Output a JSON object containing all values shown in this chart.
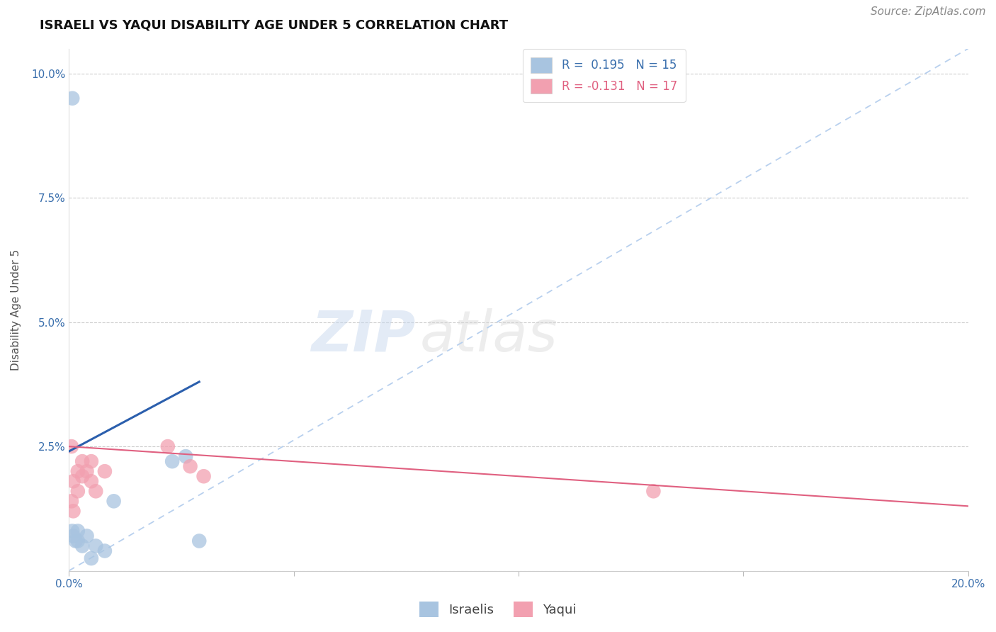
{
  "title": "ISRAELI VS YAQUI DISABILITY AGE UNDER 5 CORRELATION CHART",
  "source": "Source: ZipAtlas.com",
  "ylabel": "Disability Age Under 5",
  "xlim": [
    0.0,
    0.2
  ],
  "ylim": [
    0.0,
    0.105
  ],
  "R_israeli": 0.195,
  "N_israeli": 15,
  "R_yaqui": -0.131,
  "N_yaqui": 17,
  "israeli_color": "#a8c4e0",
  "yaqui_color": "#f2a0b0",
  "israeli_line_color": "#2b5fad",
  "yaqui_line_color": "#e06080",
  "ref_line_color": "#b8d0ee",
  "background_color": "#ffffff",
  "title_fontsize": 13,
  "axis_label_fontsize": 11,
  "tick_fontsize": 11,
  "legend_fontsize": 12,
  "source_fontsize": 11,
  "israelis_x": [
    0.0008,
    0.001,
    0.0015,
    0.002,
    0.002,
    0.003,
    0.004,
    0.005,
    0.006,
    0.008,
    0.01,
    0.023,
    0.026,
    0.029,
    0.0008
  ],
  "israelis_y": [
    0.008,
    0.007,
    0.006,
    0.008,
    0.006,
    0.005,
    0.007,
    0.0025,
    0.005,
    0.004,
    0.014,
    0.022,
    0.023,
    0.006,
    0.095
  ],
  "yaqui_x": [
    0.0006,
    0.001,
    0.001,
    0.002,
    0.002,
    0.003,
    0.003,
    0.004,
    0.005,
    0.005,
    0.006,
    0.008,
    0.022,
    0.027,
    0.03,
    0.13,
    0.0006
  ],
  "yaqui_y": [
    0.014,
    0.012,
    0.018,
    0.02,
    0.016,
    0.022,
    0.019,
    0.02,
    0.018,
    0.022,
    0.016,
    0.02,
    0.025,
    0.021,
    0.019,
    0.016,
    0.025
  ],
  "isr_line_x0": 0.0,
  "isr_line_x1": 0.029,
  "isr_line_y0": 0.024,
  "isr_line_y1": 0.038,
  "yaq_line_x0": 0.0,
  "yaq_line_x1": 0.2,
  "yaq_line_y0": 0.025,
  "yaq_line_y1": 0.013
}
